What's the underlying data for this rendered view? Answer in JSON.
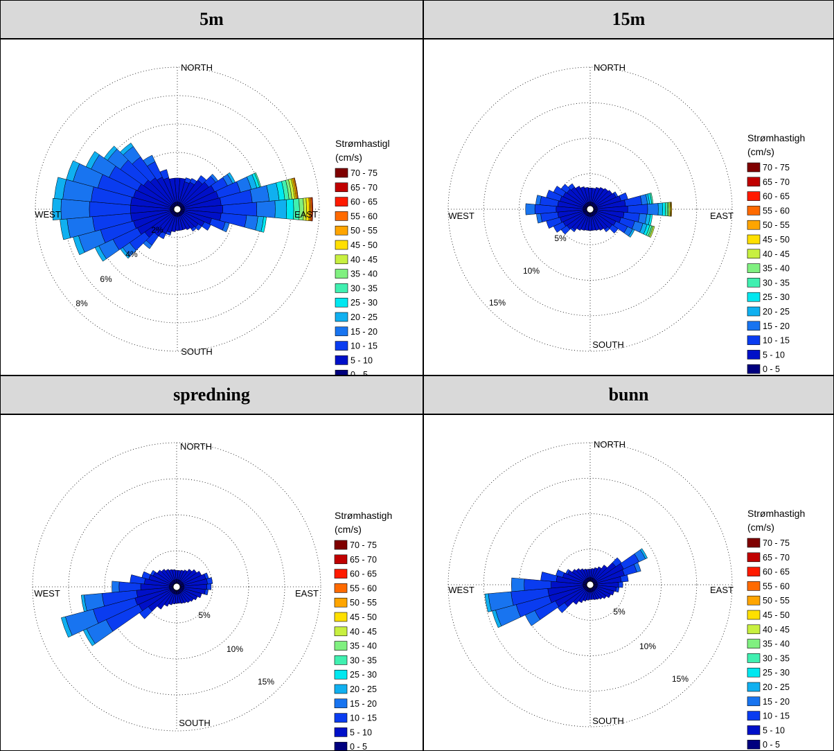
{
  "legend_bins": [
    "70 - 75",
    "65 - 70",
    "60 - 65",
    "55 - 60",
    "50 - 55",
    "45 - 50",
    "40 - 45",
    "35 - 40",
    "30 - 35",
    "25 - 30",
    "20 - 25",
    "15 - 20",
    "10 - 15",
    "5 - 10",
    "0 - 5"
  ],
  "legend_colors": [
    "#7f0000",
    "#c00000",
    "#ff1a00",
    "#ff6a00",
    "#ffa500",
    "#ffe000",
    "#c8f040",
    "#80f080",
    "#40f0b0",
    "#00e8f0",
    "#10b0f0",
    "#1874f0",
    "#0a3cf0",
    "#0010c8",
    "#00007f"
  ],
  "panels": [
    {
      "key": "p5m",
      "header": "5m",
      "legend_title": [
        "Strømhastigl",
        "(cm/s)"
      ],
      "compass": {
        "north": "NORTH",
        "south": "SOUTH",
        "west": "WEST",
        "east": "EAST"
      },
      "ring_labels": [
        "2%",
        "4%",
        "6%",
        "8%"
      ],
      "chart_data": {
        "type": "polar-stacked-bar",
        "sector_count": 36,
        "rmax_percent": 10,
        "ring_percents": [
          2,
          4,
          6,
          8,
          10
        ],
        "speed_bins": [
          "0 - 5",
          "5 - 10",
          "10 - 15",
          "15 - 20",
          "20 - 25",
          "25 - 30",
          "30 - 35",
          "35 - 40",
          "40 - 45",
          "45 - 50",
          "50 - 55",
          "55 - 60",
          "60 - 65",
          "65 - 70",
          "70 - 75"
        ],
        "directions_deg": [
          0,
          10,
          20,
          30,
          40,
          50,
          60,
          70,
          80,
          90,
          100,
          110,
          120,
          130,
          140,
          150,
          160,
          170,
          180,
          190,
          200,
          210,
          220,
          230,
          240,
          250,
          260,
          270,
          280,
          290,
          300,
          310,
          320,
          330,
          340,
          350
        ],
        "sectors": [
          [
            0.5,
            1.7
          ],
          [
            0.5,
            1.7
          ],
          [
            0.5,
            1.5,
            0.3
          ],
          [
            0.5,
            1.6,
            0.3
          ],
          [
            0.5,
            2.0,
            0.4
          ],
          [
            0.5,
            2.2,
            0.6,
            0.2
          ],
          [
            0.5,
            2.4,
            1.0,
            0.4,
            0.2
          ],
          [
            0.5,
            2.5,
            1.6,
            0.8,
            0.4,
            0.2,
            0.1
          ],
          [
            0.5,
            2.6,
            2.2,
            1.2,
            0.7,
            0.4,
            0.3,
            0.2,
            0.2,
            0.1,
            0.1,
            0.05
          ],
          [
            0.5,
            2.7,
            2.4,
            1.3,
            0.8,
            0.5,
            0.4,
            0.3,
            0.2,
            0.2,
            0.1,
            0.1,
            0.05
          ],
          [
            0.5,
            2.6,
            1.8,
            0.8,
            0.4,
            0.2
          ],
          [
            0.5,
            2.0,
            1.0,
            0.3
          ],
          [
            0.5,
            1.6,
            0.5
          ],
          [
            0.5,
            1.3,
            0.3
          ],
          [
            0.5,
            1.2,
            0.2
          ],
          [
            0.5,
            1.1
          ],
          [
            0.5,
            1.0
          ],
          [
            0.5,
            1.0
          ],
          [
            0.5,
            1.0
          ],
          [
            0.5,
            1.1
          ],
          [
            0.5,
            1.2,
            0.2
          ],
          [
            0.5,
            1.4,
            0.4
          ],
          [
            0.5,
            1.8,
            0.8,
            0.3
          ],
          [
            0.5,
            2.3,
            1.3,
            0.6,
            0.2
          ],
          [
            0.5,
            2.6,
            1.9,
            1.1,
            0.3
          ],
          [
            0.5,
            2.7,
            2.4,
            1.6,
            0.4
          ],
          [
            0.5,
            2.8,
            2.7,
            1.8,
            0.5
          ],
          [
            0.5,
            2.8,
            2.9,
            2.0,
            0.6
          ],
          [
            0.5,
            2.8,
            2.8,
            2.0,
            0.6
          ],
          [
            0.5,
            2.7,
            2.6,
            1.8,
            0.5
          ],
          [
            0.5,
            2.6,
            2.2,
            1.4,
            0.4
          ],
          [
            0.5,
            2.4,
            2.0,
            1.1,
            0.3
          ],
          [
            0.5,
            2.2,
            1.8,
            0.9,
            0.3
          ],
          [
            0.5,
            2.0,
            1.2,
            0.5
          ],
          [
            0.5,
            1.8,
            0.6
          ],
          [
            0.5,
            1.7
          ]
        ]
      }
    },
    {
      "key": "p15m",
      "header": "15m",
      "legend_title": [
        "Strømhastigh",
        "(cm/s)"
      ],
      "compass": {
        "north": "NORTH",
        "south": "SOUTH",
        "west": "WEST",
        "east": "EAST"
      },
      "ring_labels": [
        "5%",
        "10%",
        "15%"
      ],
      "chart_data": {
        "type": "polar-stacked-bar",
        "sector_count": 36,
        "rmax_percent": 20,
        "ring_percents": [
          5,
          10,
          15,
          20
        ],
        "speed_bins": [
          "0 - 5",
          "5 - 10",
          "10 - 15",
          "15 - 20",
          "20 - 25",
          "25 - 30",
          "30 - 35",
          "35 - 40",
          "40 - 45",
          "45 - 50",
          "50 - 55",
          "55 - 60",
          "60 - 65",
          "65 - 70",
          "70 - 75"
        ],
        "directions_deg": [
          0,
          10,
          20,
          30,
          40,
          50,
          60,
          70,
          80,
          90,
          100,
          110,
          120,
          130,
          140,
          150,
          160,
          170,
          180,
          190,
          200,
          210,
          220,
          230,
          240,
          250,
          260,
          270,
          280,
          290,
          300,
          310,
          320,
          330,
          340,
          350
        ],
        "sectors": [
          [
            1.0,
            2.0
          ],
          [
            1.0,
            2.0
          ],
          [
            1.0,
            2.2
          ],
          [
            1.0,
            2.4
          ],
          [
            1.0,
            2.6
          ],
          [
            1.0,
            2.8
          ],
          [
            1.0,
            3.0,
            0.3
          ],
          [
            1.0,
            3.5,
            1.0
          ],
          [
            1.0,
            4.0,
            2.3,
            0.8,
            0.3,
            0.3,
            0.2
          ],
          [
            1.0,
            4.3,
            2.8,
            1.5,
            0.6,
            0.4,
            0.3,
            0.2,
            0.2,
            0.1,
            0.1
          ],
          [
            1.0,
            3.8,
            2.2,
            1.0,
            0.5,
            0.3
          ],
          [
            1.0,
            3.5,
            2.0,
            1.2,
            0.6,
            0.4,
            0.3,
            0.2,
            0.2
          ],
          [
            1.0,
            3.0,
            1.8,
            0.8,
            0.3
          ],
          [
            1.0,
            2.8,
            1.0
          ],
          [
            1.0,
            2.5,
            0.4
          ],
          [
            1.0,
            2.3
          ],
          [
            1.0,
            2.1
          ],
          [
            1.0,
            2.0
          ],
          [
            1.0,
            2.0
          ],
          [
            1.0,
            2.0
          ],
          [
            1.0,
            2.1
          ],
          [
            1.0,
            2.3
          ],
          [
            1.0,
            2.6,
            0.3
          ],
          [
            1.0,
            3.0,
            1.0
          ],
          [
            1.0,
            3.2,
            1.5
          ],
          [
            1.0,
            3.4,
            2.0
          ],
          [
            1.0,
            3.6,
            2.4,
            0.6
          ],
          [
            1.0,
            3.8,
            3.0,
            1.3
          ],
          [
            1.0,
            3.6,
            2.5,
            0.6
          ],
          [
            1.0,
            3.4,
            2.0
          ],
          [
            1.0,
            3.2,
            1.5
          ],
          [
            1.0,
            3.0,
            1.0
          ],
          [
            1.0,
            2.8,
            0.6
          ],
          [
            1.0,
            2.6
          ],
          [
            1.0,
            2.3
          ],
          [
            1.0,
            2.1
          ]
        ]
      }
    },
    {
      "key": "pspredning",
      "header": "spredning",
      "legend_title": [
        "Strømhastigh",
        "(cm/s)"
      ],
      "compass": {
        "north": "NORTH",
        "south": "SOUTH",
        "west": "WEST",
        "east": "EAST"
      },
      "ring_labels": [
        "5%",
        "10%",
        "15%"
      ],
      "chart_data": {
        "type": "polar-stacked-bar",
        "sector_count": 36,
        "rmax_percent": 20,
        "ring_percents": [
          5,
          10,
          15,
          20
        ],
        "speed_bins": [
          "0 - 5",
          "5 - 10",
          "10 - 15",
          "15 - 20",
          "20 - 25",
          "25 - 30",
          "30 - 35",
          "35 - 40",
          "40 - 45",
          "45 - 50",
          "50 - 55",
          "55 - 60",
          "60 - 65",
          "65 - 70",
          "70 - 75"
        ],
        "directions_deg": [
          0,
          10,
          20,
          30,
          40,
          50,
          60,
          70,
          80,
          90,
          100,
          110,
          120,
          130,
          140,
          150,
          160,
          170,
          180,
          190,
          200,
          210,
          220,
          230,
          240,
          250,
          260,
          270,
          280,
          290,
          300,
          310,
          320,
          330,
          340,
          350
        ],
        "sectors": [
          [
            1.0,
            1.3
          ],
          [
            1.0,
            1.3
          ],
          [
            1.0,
            1.4
          ],
          [
            1.0,
            1.6
          ],
          [
            1.0,
            2.0
          ],
          [
            1.0,
            2.4
          ],
          [
            1.0,
            2.8
          ],
          [
            1.0,
            3.2,
            0.4
          ],
          [
            1.0,
            3.3,
            0.7
          ],
          [
            1.0,
            3.2,
            0.6
          ],
          [
            1.0,
            3.0,
            0.4
          ],
          [
            1.0,
            2.6
          ],
          [
            1.0,
            2.2
          ],
          [
            1.0,
            1.9
          ],
          [
            1.0,
            1.7
          ],
          [
            1.0,
            1.5
          ],
          [
            1.0,
            1.4
          ],
          [
            1.0,
            1.3
          ],
          [
            1.0,
            1.3
          ],
          [
            1.0,
            1.4
          ],
          [
            1.0,
            1.6
          ],
          [
            1.0,
            2.0
          ],
          [
            1.0,
            2.8
          ],
          [
            1.0,
            3.8,
            1.5
          ],
          [
            1.0,
            4.8,
            5.0,
            3.0,
            0.5
          ],
          [
            1.0,
            5.0,
            6.0,
            4.0,
            0.6
          ],
          [
            1.0,
            4.6,
            4.8,
            2.5,
            0.4
          ],
          [
            1.0,
            4.0,
            3.0,
            1.0
          ],
          [
            1.0,
            3.5,
            2.0
          ],
          [
            1.0,
            3.0,
            1.0
          ],
          [
            1.0,
            2.6,
            0.4
          ],
          [
            1.0,
            2.3
          ],
          [
            1.0,
            2.0
          ],
          [
            1.0,
            1.7
          ],
          [
            1.0,
            1.5
          ],
          [
            1.0,
            1.4
          ]
        ]
      }
    },
    {
      "key": "pbunn",
      "header": "bunn",
      "legend_title": [
        "Strømhastigh",
        "(cm/s)"
      ],
      "compass": {
        "north": "NORTH",
        "south": "SOUTH",
        "west": "WEST",
        "east": "EAST"
      },
      "ring_labels": [
        "5%",
        "10%",
        "15%"
      ],
      "chart_data": {
        "type": "polar-stacked-bar",
        "sector_count": 36,
        "rmax_percent": 20,
        "ring_percents": [
          5,
          10,
          15,
          20
        ],
        "speed_bins": [
          "0 - 5",
          "5 - 10",
          "10 - 15",
          "15 - 20",
          "20 - 25",
          "25 - 30",
          "30 - 35",
          "35 - 40",
          "40 - 45",
          "45 - 50",
          "50 - 55",
          "55 - 60",
          "60 - 65",
          "65 - 70",
          "70 - 75"
        ],
        "directions_deg": [
          0,
          10,
          20,
          30,
          40,
          50,
          60,
          70,
          80,
          90,
          100,
          110,
          120,
          130,
          140,
          150,
          160,
          170,
          180,
          190,
          200,
          210,
          220,
          230,
          240,
          250,
          260,
          270,
          280,
          290,
          300,
          310,
          320,
          330,
          340,
          350
        ],
        "sectors": [
          [
            1.0,
            1.2
          ],
          [
            1.0,
            1.3
          ],
          [
            1.0,
            1.5
          ],
          [
            1.0,
            1.8
          ],
          [
            1.0,
            2.4
          ],
          [
            1.0,
            3.4,
            1.0
          ],
          [
            1.0,
            4.2,
            2.4,
            1.0,
            0.3
          ],
          [
            1.0,
            4.0,
            1.8,
            0.6
          ],
          [
            1.0,
            3.4,
            1.0
          ],
          [
            1.0,
            3.0,
            0.6
          ],
          [
            1.0,
            2.7,
            0.4
          ],
          [
            1.0,
            2.5
          ],
          [
            1.0,
            2.2
          ],
          [
            1.0,
            1.8
          ],
          [
            1.0,
            1.5
          ],
          [
            1.0,
            1.3
          ],
          [
            1.0,
            1.2
          ],
          [
            1.0,
            1.1
          ],
          [
            1.0,
            1.1
          ],
          [
            1.0,
            1.2
          ],
          [
            1.0,
            1.4
          ],
          [
            1.0,
            1.8
          ],
          [
            1.0,
            2.4
          ],
          [
            1.0,
            3.4,
            1.2
          ],
          [
            1.0,
            4.4,
            3.2,
            1.5
          ],
          [
            1.0,
            5.0,
            4.8,
            3.0,
            0.5
          ],
          [
            1.0,
            5.0,
            5.2,
            3.2,
            0.5
          ],
          [
            1.0,
            4.5,
            3.8,
            1.8
          ],
          [
            1.0,
            3.8,
            2.2
          ],
          [
            1.0,
            3.0,
            1.0
          ],
          [
            1.0,
            2.5,
            0.3
          ],
          [
            1.0,
            2.1
          ],
          [
            1.0,
            1.8
          ],
          [
            1.0,
            1.5
          ],
          [
            1.0,
            1.3
          ],
          [
            1.0,
            1.2
          ]
        ]
      }
    }
  ]
}
